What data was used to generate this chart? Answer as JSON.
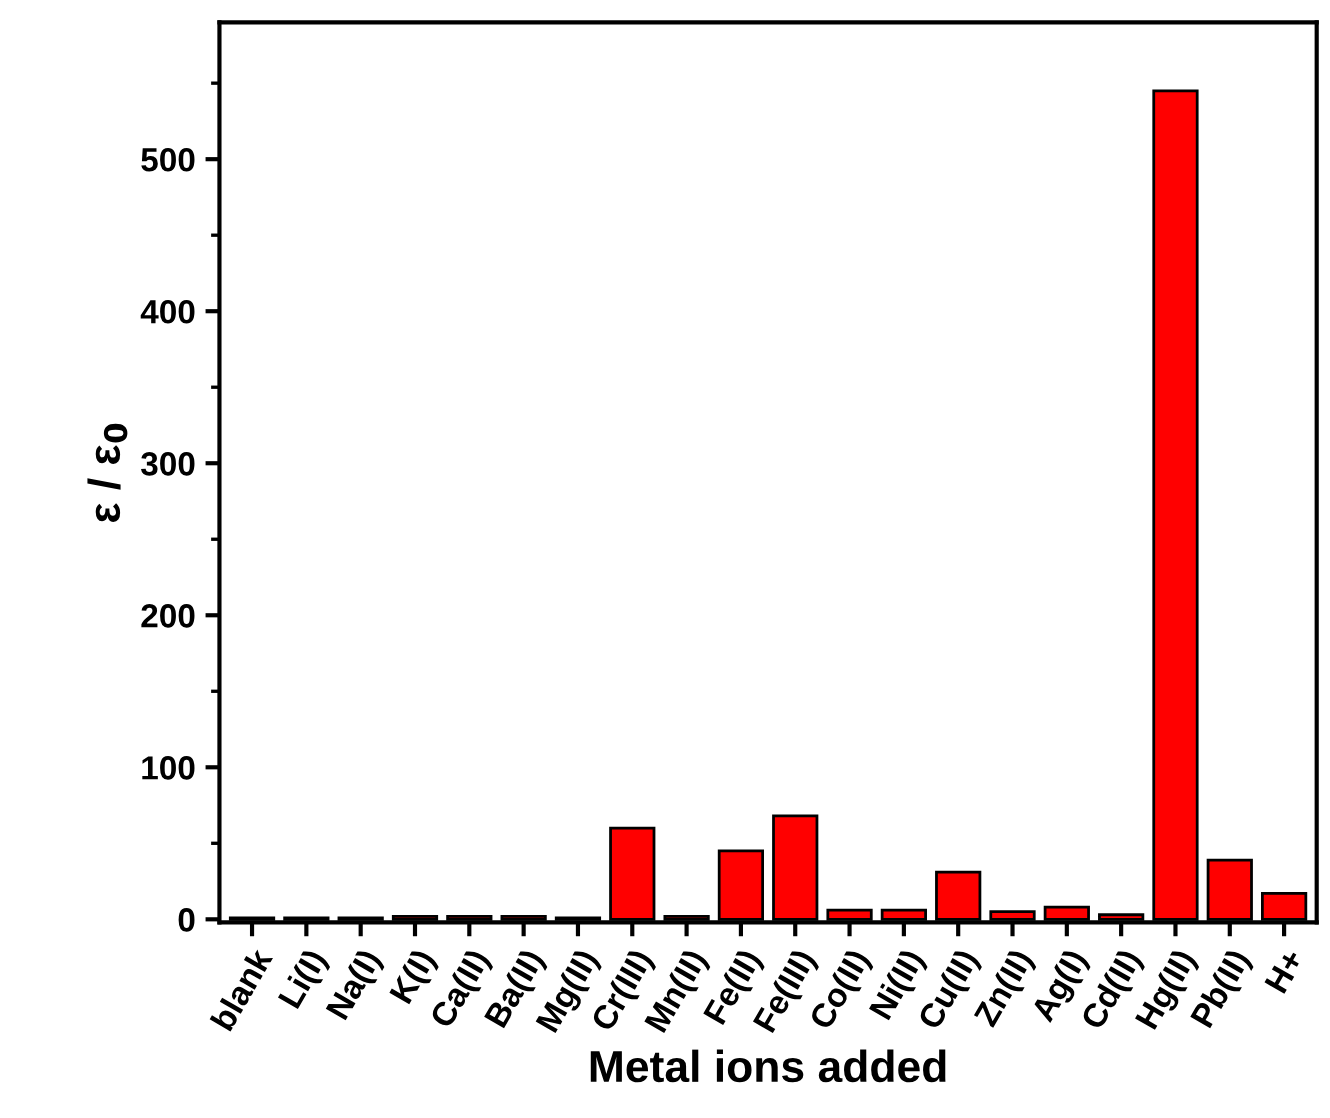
{
  "chart_data": {
    "type": "bar",
    "xlabel": "Metal ions added",
    "ylabel": "ε / ε$_{0}$",
    "categories": [
      "blank",
      "Li(I)",
      "Na(I)",
      "K(I)",
      "Ca(II)",
      "Ba(II)",
      "Mg(II)",
      "Cr(III)",
      "Mn(II)",
      "Fe(II)",
      "Fe(III)",
      "Co(II)",
      "Ni(II)",
      "Cu(II)",
      "Zn(II)",
      "Ag(I)",
      "Cd(II)",
      "Hg(II)",
      "Pb(II)",
      "H+"
    ],
    "values": [
      1,
      1,
      1,
      2,
      2,
      2,
      1,
      60,
      2,
      45,
      68,
      6,
      6,
      31,
      5,
      8,
      3,
      545,
      39,
      17
    ],
    "color": "#ff0000",
    "ylim": [
      -2,
      590
    ],
    "yticks": [
      0,
      100,
      200,
      300,
      400,
      500
    ],
    "grid": false,
    "legend": false
  }
}
